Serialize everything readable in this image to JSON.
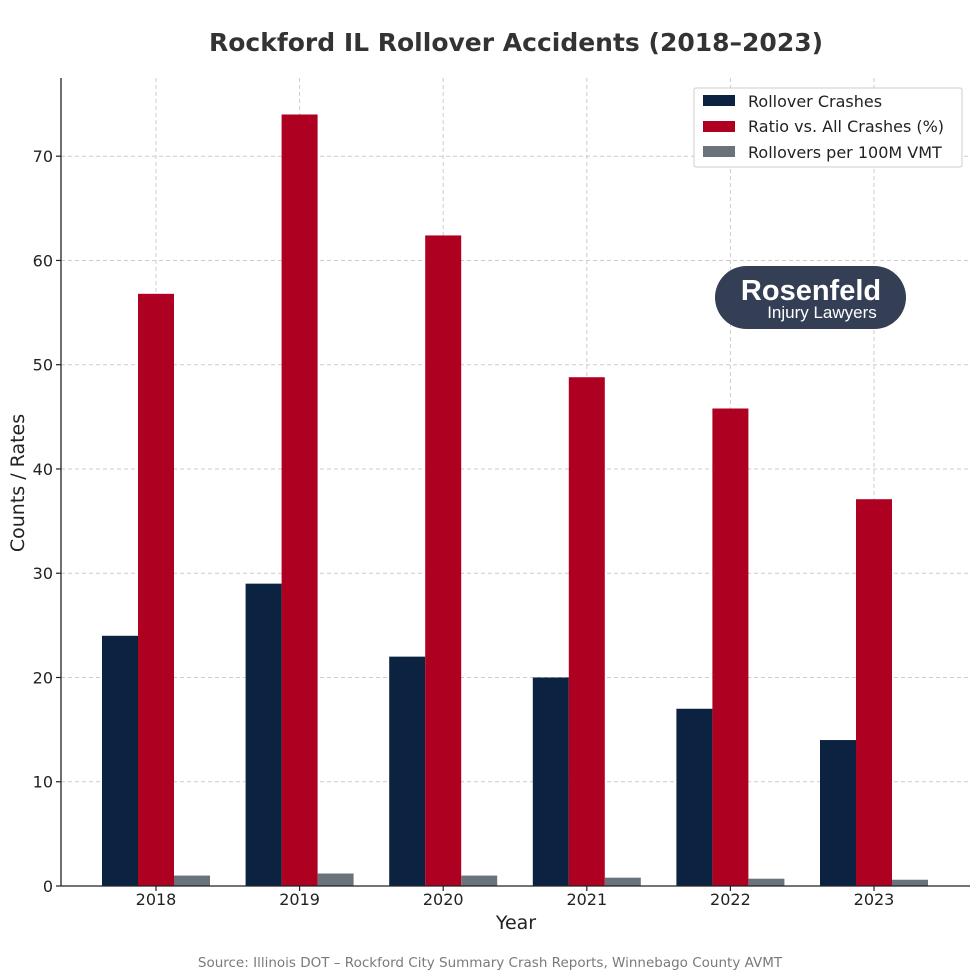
{
  "chart_data": {
    "type": "bar",
    "title": "Rockford IL Rollover Accidents (2018–2023)",
    "xlabel": "Year",
    "ylabel": "Counts / Rates",
    "categories": [
      "2018",
      "2019",
      "2020",
      "2021",
      "2022",
      "2023"
    ],
    "ylim": [
      0,
      77.5
    ],
    "yticks": [
      0,
      10,
      20,
      30,
      40,
      50,
      60,
      70
    ],
    "grid": true,
    "legend_position": "top-right",
    "series": [
      {
        "name": "Rollover Crashes",
        "color": "#0b2340",
        "values": [
          24,
          29,
          22,
          20,
          17,
          14
        ]
      },
      {
        "name": "Ratio vs. All Crashes (%)",
        "color": "#ae0020",
        "values": [
          56.8,
          74,
          62.4,
          48.8,
          45.8,
          37.1
        ]
      },
      {
        "name": "Rollovers per 100M VMT",
        "color": "#6a737c",
        "values": [
          1.0,
          1.2,
          1.0,
          0.8,
          0.7,
          0.6
        ]
      }
    ]
  },
  "logo": {
    "name": "Rosenfeld",
    "subtitle": "Injury Lawyers",
    "color": "#343f56"
  },
  "source": "Source: Illinois DOT – Rockford City Summary Crash Reports, Winnebago County AVMT"
}
